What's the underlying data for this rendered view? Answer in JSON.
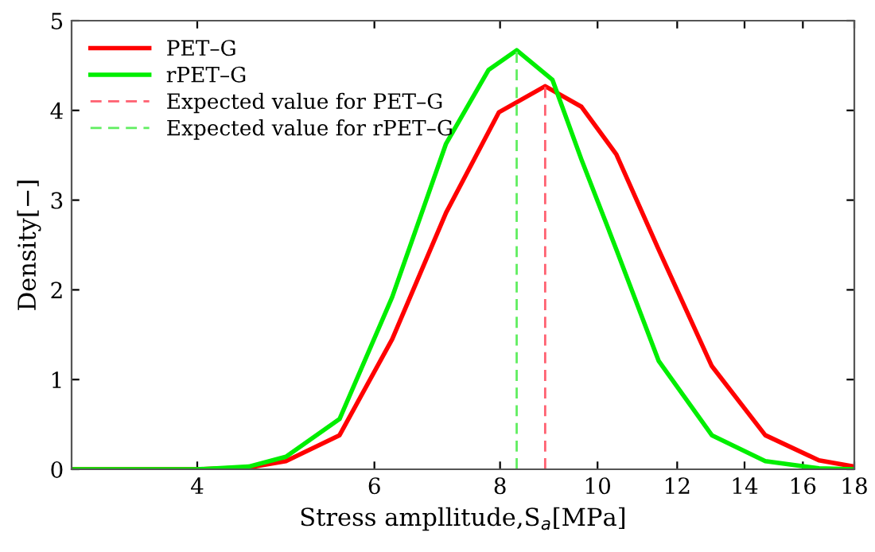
{
  "chart_data": {
    "type": "line",
    "xlabel": "Stress ampllitude,S$_{a}$[MPa]",
    "ylabel": "Density[−]",
    "log": "x",
    "xlim": [
      3,
      18
    ],
    "xticks": [
      4,
      6,
      8,
      10,
      12,
      14,
      16,
      18
    ],
    "ylim": [
      0,
      5
    ],
    "yticks": [
      0,
      1,
      2,
      3,
      4,
      5
    ],
    "grid": false,
    "legend": "top left",
    "marker": "none",
    "series": [
      {
        "name": "PET–G",
        "color": "#ff0000",
        "line_style": "solid",
        "x": [
          3,
          4,
          4.5,
          4.9,
          5.54,
          6.25,
          7.07,
          7.98,
          8.87,
          9.64,
          10.44,
          11.5,
          12.99,
          14.68,
          16.6,
          18
        ],
        "values": [
          0,
          0,
          0.02,
          0.09,
          0.38,
          1.45,
          2.86,
          3.98,
          4.27,
          4.04,
          3.51,
          2.45,
          1.15,
          0.38,
          0.1,
          0.03
        ]
      },
      {
        "name": "rPET–G",
        "color": "#00ee00",
        "line_style": "solid",
        "x": [
          3,
          4,
          4.5,
          4.9,
          5.54,
          6.25,
          7.07,
          7.79,
          8.31,
          9.02,
          9.64,
          10.44,
          11.5,
          12.99,
          14.68,
          16.6,
          18
        ],
        "values": [
          0,
          0,
          0.03,
          0.14,
          0.56,
          1.92,
          3.63,
          4.45,
          4.67,
          4.34,
          3.45,
          2.45,
          1.21,
          0.38,
          0.09,
          0.01,
          0
        ]
      },
      {
        "name": "Expected value for PET–G",
        "color": "#ff6070",
        "line_style": "dashed",
        "x": [
          8.87,
          8.87
        ],
        "values": [
          0,
          4.27
        ]
      },
      {
        "name": "Expected value for rPET–G",
        "color": "#60ee60",
        "line_style": "dashed",
        "x": [
          8.31,
          8.31
        ],
        "values": [
          0,
          4.67
        ]
      }
    ]
  }
}
